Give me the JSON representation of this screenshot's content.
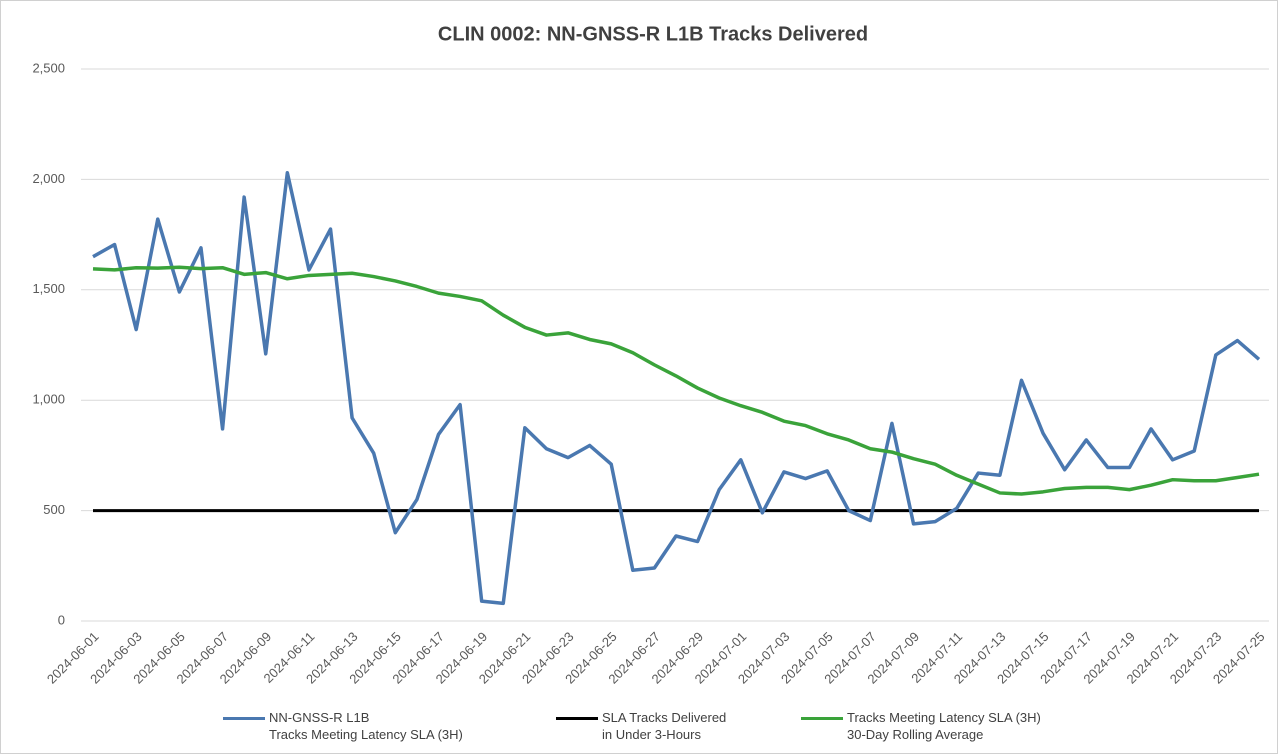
{
  "chart_data": {
    "type": "line",
    "title": "CLIN 0002:  NN-GNSS-R L1B Tracks Delivered",
    "categories": [
      "2024-06-01",
      null,
      "2024-06-03",
      null,
      "2024-06-05",
      null,
      "2024-06-07",
      null,
      "2024-06-09",
      null,
      "2024-06-11",
      null,
      "2024-06-13",
      null,
      "2024-06-15",
      null,
      "2024-06-17",
      null,
      "2024-06-19",
      null,
      "2024-06-21",
      null,
      "2024-06-23",
      null,
      "2024-06-25",
      null,
      "2024-06-27",
      null,
      "2024-06-29",
      null,
      "2024-07-01",
      null,
      "2024-07-03",
      null,
      "2024-07-05",
      null,
      "2024-07-07",
      null,
      "2024-07-09",
      null,
      "2024-07-11",
      null,
      "2024-07-13",
      null,
      "2024-07-15",
      null,
      "2024-07-17",
      null,
      "2024-07-19",
      null,
      "2024-07-21",
      null,
      "2024-07-23",
      null,
      "2024-07-25"
    ],
    "series": [
      {
        "name": "NN-GNSS-R L1B\nTracks Meeting Latency SLA (3H)",
        "color": "#4a78b0",
        "width": 3.5,
        "values": [
          1650,
          1705,
          1320,
          1820,
          1490,
          1690,
          870,
          1920,
          1210,
          2030,
          1590,
          1775,
          920,
          760,
          400,
          550,
          845,
          980,
          90,
          80,
          875,
          780,
          740,
          795,
          710,
          230,
          240,
          385,
          360,
          595,
          730,
          490,
          675,
          645,
          680,
          500,
          455,
          895,
          440,
          450,
          510,
          670,
          660,
          1090,
          850,
          685,
          820,
          695,
          695,
          870,
          730,
          770,
          1205,
          1270,
          1185
        ]
      },
      {
        "name": "SLA Tracks Delivered\nin Under 3-Hours",
        "color": "#000000",
        "width": 3,
        "values": [
          500,
          500,
          500,
          500,
          500,
          500,
          500,
          500,
          500,
          500,
          500,
          500,
          500,
          500,
          500,
          500,
          500,
          500,
          500,
          500,
          500,
          500,
          500,
          500,
          500,
          500,
          500,
          500,
          500,
          500,
          500,
          500,
          500,
          500,
          500,
          500,
          500,
          500,
          500,
          500,
          500,
          500,
          500,
          500,
          500,
          500,
          500,
          500,
          500,
          500,
          500,
          500,
          500,
          500,
          500
        ]
      },
      {
        "name": "Tracks Meeting Latency SLA (3H)\n30-Day Rolling Average",
        "color": "#3aa33a",
        "width": 3.5,
        "values": [
          1595,
          1590,
          1600,
          1598,
          1602,
          1596,
          1600,
          1570,
          1578,
          1550,
          1565,
          1570,
          1575,
          1560,
          1540,
          1515,
          1485,
          1470,
          1450,
          1385,
          1330,
          1295,
          1305,
          1275,
          1255,
          1215,
          1160,
          1110,
          1055,
          1010,
          975,
          945,
          905,
          885,
          848,
          820,
          780,
          765,
          735,
          710,
          660,
          620,
          580,
          575,
          585,
          600,
          605,
          605,
          595,
          615,
          640,
          635,
          635,
          650,
          665
        ]
      }
    ],
    "ylim": [
      0,
      2500
    ],
    "yticks": [
      0,
      {
        "value": 500,
        "label": "500"
      },
      {
        "value": 1000,
        "label": "1,000"
      },
      {
        "value": 1500,
        "label": "1,500"
      },
      {
        "value": 2000,
        "label": "2,000"
      },
      {
        "value": 2500,
        "label": "2,500"
      }
    ],
    "grid": true
  }
}
